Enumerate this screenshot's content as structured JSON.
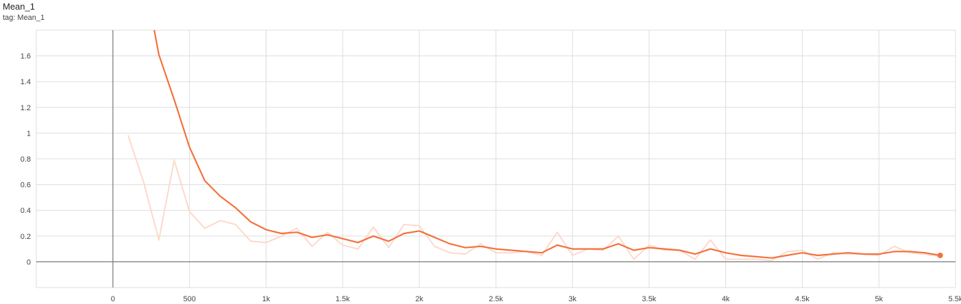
{
  "card": {
    "title": "Mean_1",
    "tag": "tag: Mean_1"
  },
  "chart_data": {
    "type": "line",
    "title": "Mean_1",
    "xlabel": "",
    "ylabel": "",
    "xlim": [
      -500,
      5500
    ],
    "ylim": [
      -0.2,
      1.8
    ],
    "x_ticks": [
      0,
      500,
      1000,
      1500,
      2000,
      2500,
      3000,
      3500,
      4000,
      4500,
      5000,
      5500
    ],
    "x_tick_labels": [
      "0",
      "500",
      "1k",
      "1.5k",
      "2k",
      "2.5k",
      "3k",
      "3.5k",
      "4k",
      "4.5k",
      "5k",
      "5.5k"
    ],
    "y_ticks": [
      0,
      0.2,
      0.4,
      0.6,
      0.8,
      1,
      1.2,
      1.4,
      1.6
    ],
    "y_tick_labels": [
      "0",
      "0.2",
      "0.4",
      "0.6",
      "0.8",
      "1",
      "1.2",
      "1.4",
      "1.6"
    ],
    "grid": true,
    "colors": {
      "smoothed": "#f4713c",
      "raw": "#fcd9cc",
      "axis": "#777777",
      "grid": "#dddddd"
    },
    "series": [
      {
        "role": "raw",
        "x": [
          100,
          200,
          300,
          400,
          500,
          600,
          700,
          800,
          900,
          1000,
          1100,
          1200,
          1300,
          1400,
          1500,
          1600,
          1700,
          1800,
          1900,
          2000,
          2100,
          2200,
          2300,
          2400,
          2500,
          2600,
          2700,
          2800,
          2900,
          3000,
          3100,
          3200,
          3300,
          3400,
          3500,
          3600,
          3700,
          3800,
          3900,
          4000,
          4100,
          4200,
          4300,
          4400,
          4500,
          4600,
          4700,
          4800,
          4900,
          5000,
          5100,
          5200,
          5300,
          5400
        ],
        "y": [
          0.98,
          0.62,
          0.17,
          0.79,
          0.39,
          0.26,
          0.32,
          0.29,
          0.16,
          0.15,
          0.2,
          0.26,
          0.12,
          0.23,
          0.13,
          0.1,
          0.27,
          0.11,
          0.29,
          0.28,
          0.12,
          0.07,
          0.06,
          0.14,
          0.07,
          0.07,
          0.08,
          0.05,
          0.23,
          0.05,
          0.1,
          0.09,
          0.2,
          0.02,
          0.13,
          0.09,
          0.09,
          0.02,
          0.17,
          0.02,
          0.02,
          0.02,
          0.01,
          0.08,
          0.09,
          0.02,
          0.07,
          0.06,
          0.06,
          0.05,
          0.12,
          0.07,
          0.06,
          0.04
        ]
      },
      {
        "role": "smoothed",
        "x": [
          270,
          300,
          400,
          500,
          600,
          700,
          800,
          900,
          1000,
          1100,
          1200,
          1300,
          1400,
          1500,
          1600,
          1700,
          1800,
          1900,
          2000,
          2100,
          2200,
          2300,
          2400,
          2500,
          2600,
          2700,
          2800,
          2900,
          3000,
          3100,
          3200,
          3300,
          3400,
          3500,
          3600,
          3700,
          3800,
          3900,
          4000,
          4100,
          4200,
          4300,
          4400,
          4500,
          4600,
          4700,
          4800,
          4900,
          5000,
          5100,
          5200,
          5300,
          5400
        ],
        "y": [
          1.8,
          1.61,
          1.26,
          0.89,
          0.63,
          0.51,
          0.42,
          0.31,
          0.25,
          0.22,
          0.23,
          0.19,
          0.21,
          0.18,
          0.15,
          0.2,
          0.16,
          0.22,
          0.24,
          0.19,
          0.14,
          0.11,
          0.12,
          0.1,
          0.09,
          0.08,
          0.07,
          0.13,
          0.1,
          0.1,
          0.1,
          0.14,
          0.09,
          0.11,
          0.1,
          0.09,
          0.06,
          0.1,
          0.07,
          0.05,
          0.04,
          0.03,
          0.05,
          0.07,
          0.05,
          0.06,
          0.07,
          0.06,
          0.06,
          0.08,
          0.08,
          0.07,
          0.05
        ]
      }
    ]
  }
}
